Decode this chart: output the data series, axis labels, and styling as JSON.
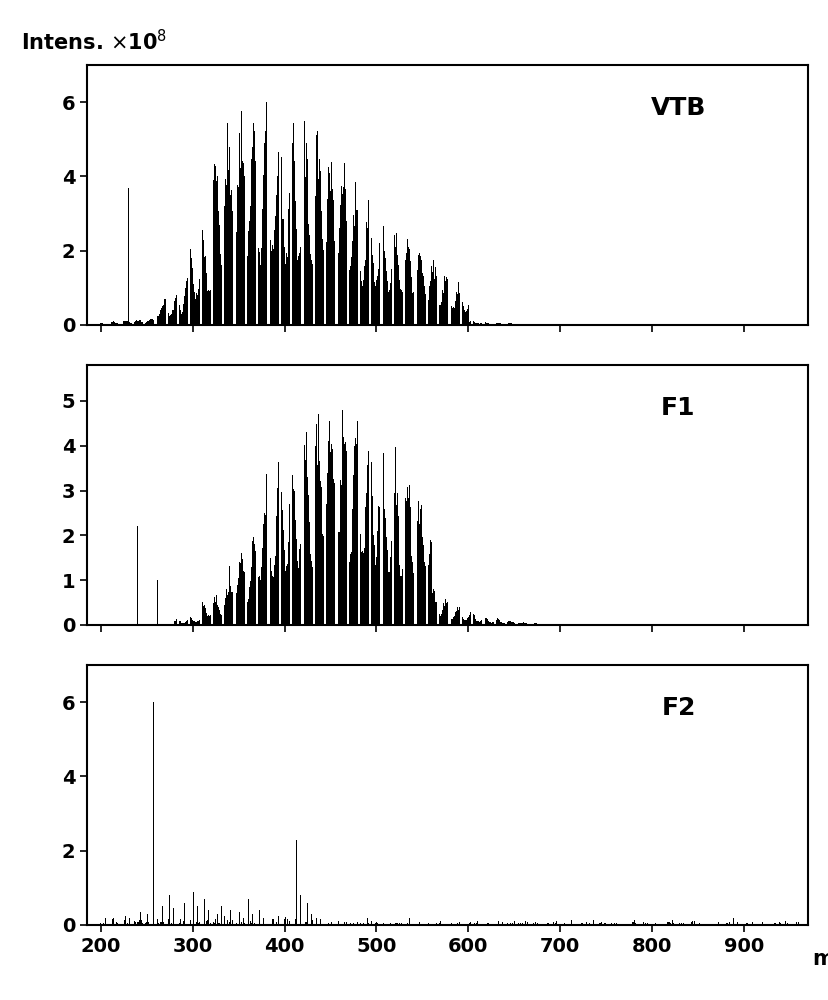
{
  "panels": [
    "VTB",
    "F1",
    "F2"
  ],
  "xlim": [
    185,
    970
  ],
  "xticks": [
    200,
    300,
    400,
    500,
    600,
    700,
    800,
    900
  ],
  "yticks_vtb": [
    0,
    2,
    4,
    6
  ],
  "yticks_f1": [
    0,
    1,
    2,
    3,
    4,
    5
  ],
  "yticks_f2": [
    0,
    2,
    4,
    6
  ],
  "ylim_vtb": [
    0,
    7.0
  ],
  "ylim_f1": [
    0,
    5.8
  ],
  "ylim_f2": [
    0,
    7.0
  ],
  "bar_color": "#000000",
  "background_color": "#ffffff",
  "label_fontsize": 15,
  "tick_fontsize": 14,
  "panel_label_fontsize": 18
}
